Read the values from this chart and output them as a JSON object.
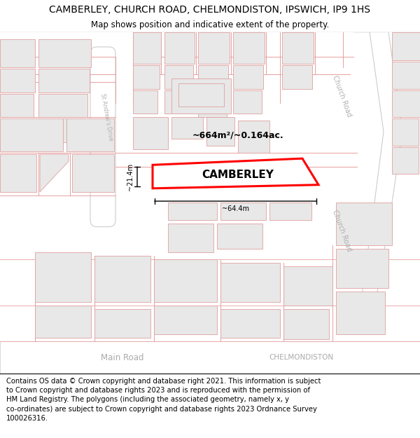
{
  "title_line1": "CAMBERLEY, CHURCH ROAD, CHELMONDISTON, IPSWICH, IP9 1HS",
  "title_line2": "Map shows position and indicative extent of the property.",
  "footer_text": "Contains OS data © Crown copyright and database right 2021. This information is subject to Crown copyright and database rights 2023 and is reproduced with the permission of HM Land Registry. The polygons (including the associated geometry, namely x, y co-ordinates) are subject to Crown copyright and database rights 2023 Ordnance Survey 100026316.",
  "property_label": "CAMBERLEY",
  "area_label": "~664m²/~0.164ac.",
  "width_label": "~64.4m",
  "height_label": "~21.4m",
  "map_bg": "#ffffff",
  "road_line_color": "#e8a0a0",
  "building_fill": "#e8e8e8",
  "building_edge": "#e0a0a0",
  "road_fill": "#ffffff",
  "road_edge": "#c0c0c0",
  "property_outline": "#ff0000",
  "title_fontsize": 10,
  "subtitle_fontsize": 8.5,
  "footer_fontsize": 7.2,
  "road_label_color": "#aaaaaa",
  "street_label_color": "#b0b0b0"
}
